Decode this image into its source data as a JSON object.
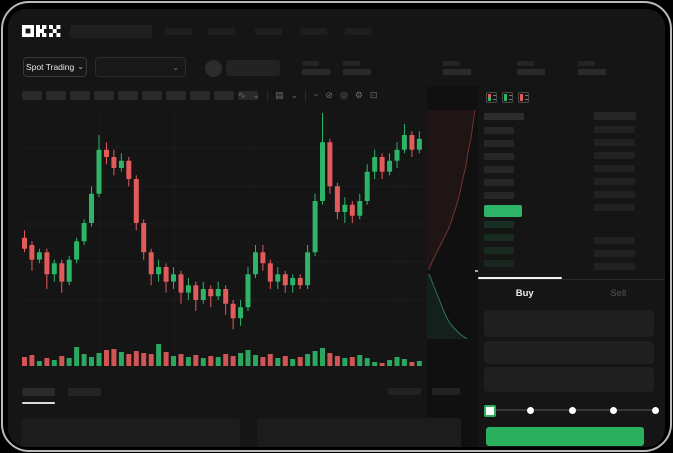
{
  "header": {
    "brand": "OKX",
    "market_selector_label": "Spot Trading",
    "chevron_glyph": "⌄"
  },
  "chart_toolbar": {
    "icons": [
      {
        "name": "indicators-icon",
        "glyph": "∿"
      },
      {
        "name": "chevron-down-icon",
        "glyph": "⌄"
      },
      {
        "name": "candle-style-icon",
        "glyph": "▤"
      },
      {
        "name": "chevron-down-icon",
        "glyph": "⌄"
      },
      {
        "name": "line-tool-icon",
        "glyph": "~"
      },
      {
        "name": "draw-tool-icon",
        "glyph": "⊘"
      },
      {
        "name": "camera-icon",
        "glyph": "◎"
      },
      {
        "name": "settings-gear-icon",
        "glyph": "⚙"
      },
      {
        "name": "fullscreen-icon",
        "glyph": "⊡"
      }
    ]
  },
  "order_book": {
    "view_icons": [
      {
        "name": "book-combined-icon",
        "top_color": "#e25b5b",
        "bottom_color": "#2eb467"
      },
      {
        "name": "book-bids-icon",
        "top_color": "#2eb467",
        "bottom_color": "#2eb467"
      },
      {
        "name": "book-asks-icon",
        "top_color": "#e25b5b",
        "bottom_color": "#e25b5b"
      }
    ],
    "ask_row_count": 6,
    "bid_row_count": 4,
    "right_top_row_count": 7,
    "right_bottom_row_count": 3,
    "last_price_color": "#2eb467"
  },
  "trade_panel": {
    "buy_label": "Buy",
    "sell_label": "Sell",
    "field_count": 3,
    "slider_steps": 5,
    "button_color": "#2bb05f"
  },
  "chart_data": {
    "type": "candlestick",
    "title": "",
    "legend": "none",
    "grid": {
      "h": [
        40,
        78,
        116,
        154,
        192
      ],
      "v": [
        80,
        155,
        230,
        305,
        380
      ]
    },
    "colors": {
      "up": "#2eb467",
      "down": "#e25b5b"
    },
    "candles": {
      "open": [
        48,
        46,
        42,
        44,
        38,
        41,
        36,
        42,
        47,
        52,
        60,
        72,
        70,
        67,
        69,
        64,
        52,
        44,
        38,
        40,
        36,
        38,
        33,
        35,
        31,
        34,
        32,
        34,
        30,
        26,
        29,
        38,
        44,
        41,
        36,
        38,
        35,
        37,
        35,
        44,
        58,
        74,
        62,
        55,
        57,
        54,
        58,
        66,
        70,
        66,
        69,
        72,
        76,
        72
      ],
      "close": [
        45,
        42,
        44,
        38,
        41,
        36,
        42,
        47,
        52,
        60,
        72,
        70,
        67,
        69,
        64,
        52,
        44,
        38,
        40,
        36,
        38,
        33,
        35,
        31,
        34,
        32,
        34,
        30,
        26,
        29,
        38,
        44,
        41,
        36,
        38,
        35,
        37,
        35,
        44,
        58,
        74,
        62,
        55,
        57,
        54,
        58,
        66,
        70,
        66,
        69,
        72,
        76,
        72,
        75
      ],
      "high": [
        50,
        47,
        45,
        45,
        42,
        42,
        43,
        48,
        53,
        62,
        76,
        74,
        72,
        71,
        70,
        65,
        53,
        45,
        42,
        41,
        40,
        39,
        37,
        36,
        36,
        35,
        36,
        35,
        31,
        31,
        40,
        46,
        46,
        42,
        40,
        39,
        38,
        38,
        46,
        60,
        82,
        75,
        63,
        59,
        58,
        60,
        68,
        72,
        71,
        71,
        74,
        79,
        77,
        77
      ],
      "low": [
        44,
        39,
        41,
        34,
        36,
        33,
        35,
        41,
        46,
        51,
        59,
        68,
        65,
        66,
        62,
        50,
        42,
        35,
        36,
        33,
        34,
        30,
        31,
        28,
        30,
        29,
        31,
        27,
        23,
        24,
        28,
        37,
        39,
        34,
        34,
        33,
        33,
        34,
        34,
        43,
        57,
        60,
        53,
        52,
        52,
        53,
        57,
        64,
        64,
        65,
        67,
        71,
        70,
        71
      ]
    },
    "volume": [
      9,
      11,
      5,
      8,
      6,
      10,
      8,
      19,
      12,
      9,
      13,
      16,
      17,
      14,
      12,
      15,
      13,
      12,
      22,
      14,
      10,
      12,
      9,
      11,
      8,
      10,
      9,
      12,
      10,
      13,
      16,
      11,
      9,
      12,
      8,
      10,
      7,
      9,
      12,
      15,
      18,
      13,
      10,
      8,
      9,
      11,
      8,
      4,
      3,
      6,
      9,
      7,
      4,
      5
    ],
    "depth": {
      "ask_curve": "48,2 46,16 44,30 41,44 39,58 36,70 33,84 30,96 26,108 22,120 16,132 10,144 5,154 2,162",
      "bid_curve": "2,166 6,176 10,186 14,196 18,206 22,214 27,220 33,226 40,231",
      "ask_fill": "rgba(226,91,91,0.08)",
      "bid_fill": "rgba(46,180,140,0.10)",
      "ask_stroke": "rgba(226,91,91,0.45)",
      "bid_stroke": "rgba(90,200,170,0.5)"
    }
  }
}
